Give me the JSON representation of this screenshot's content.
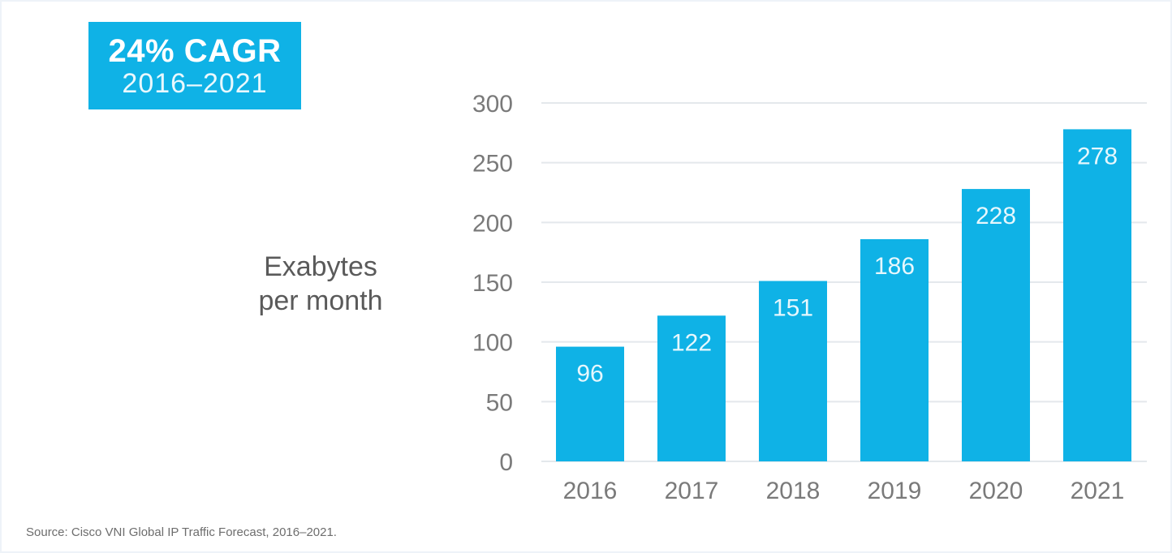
{
  "badge": {
    "headline": "24% CAGR",
    "period": "2016–2021"
  },
  "source": "Source:  Cisco VNI Global IP Traffic Forecast, 2016–2021.",
  "colors": {
    "bar": "#0fb2e6",
    "grid": "#e4e8ec",
    "tick_text": "#7a7a7a",
    "bar_label": "#e6f7fd"
  },
  "chart_data": {
    "type": "bar",
    "categories": [
      "2016",
      "2017",
      "2018",
      "2019",
      "2020",
      "2021"
    ],
    "values": [
      96,
      122,
      151,
      186,
      228,
      278
    ],
    "title": "",
    "ylabel_lines": [
      "Exabytes",
      "per month"
    ],
    "xlabel": "",
    "ylim": [
      0,
      300
    ],
    "yticks": [
      0,
      50,
      100,
      150,
      200,
      250,
      300
    ],
    "grid": true,
    "data_labels": true
  }
}
